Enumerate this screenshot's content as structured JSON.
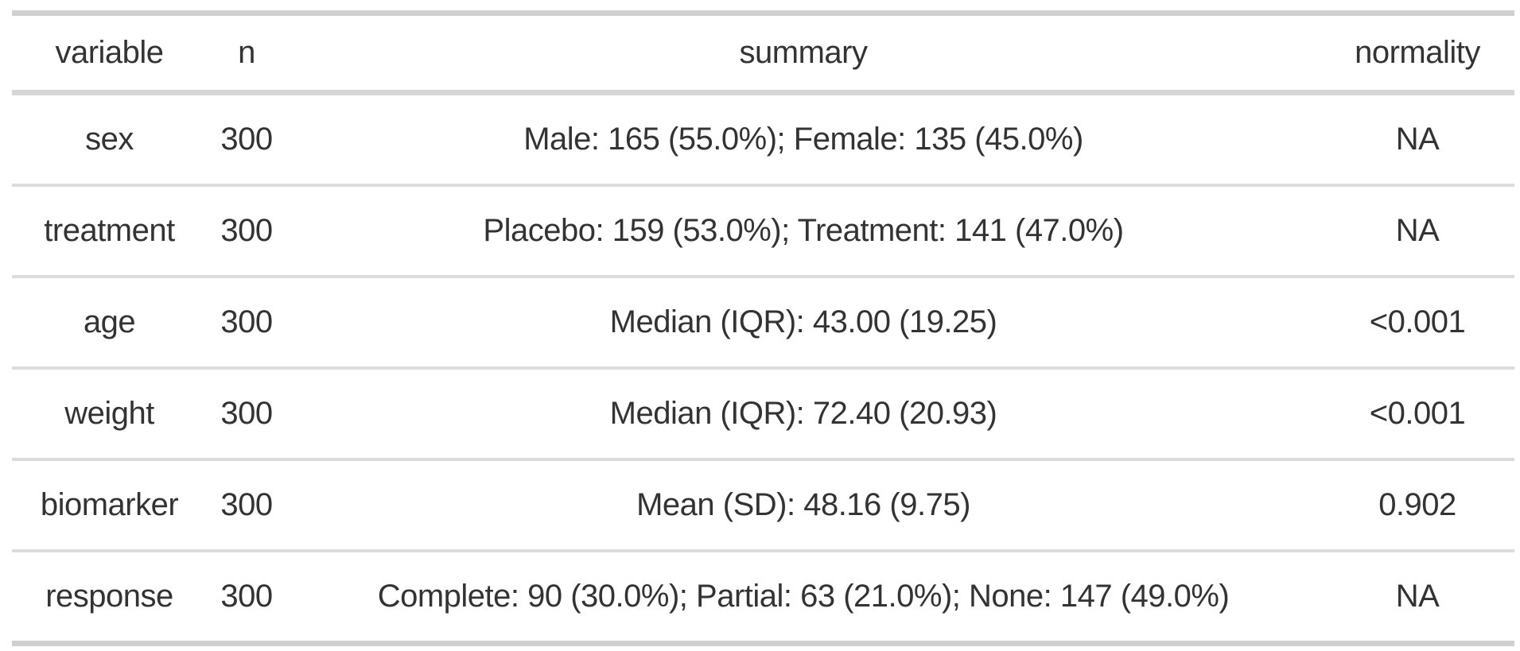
{
  "chart_data": {
    "type": "table",
    "columns": [
      "variable",
      "n",
      "summary",
      "normality"
    ],
    "rows": [
      {
        "variable": "sex",
        "n": "300",
        "summary": "Male: 165 (55.0%); Female: 135 (45.0%)",
        "normality": "NA"
      },
      {
        "variable": "treatment",
        "n": "300",
        "summary": "Placebo: 159 (53.0%); Treatment: 141 (47.0%)",
        "normality": "NA"
      },
      {
        "variable": "age",
        "n": "300",
        "summary": "Median (IQR): 43.00 (19.25)",
        "normality": "<0.001"
      },
      {
        "variable": "weight",
        "n": "300",
        "summary": "Median (IQR): 72.40 (20.93)",
        "normality": "<0.001"
      },
      {
        "variable": "biomarker",
        "n": "300",
        "summary": "Mean (SD): 48.16 (9.75)",
        "normality": "0.902"
      },
      {
        "variable": "response",
        "n": "300",
        "summary": "Complete: 90 (30.0%); Partial: 63 (21.0%); None: 147 (49.0%)",
        "normality": "NA"
      }
    ],
    "layout": {
      "grid": "horizontal-row-separators-only",
      "header_position": "top"
    }
  },
  "colors": {
    "background": "#ffffff",
    "text": "#333333",
    "outer_border": "#d0d0d0",
    "header_border": "#d6d6d6",
    "row_border": "#dcdcdc"
  }
}
